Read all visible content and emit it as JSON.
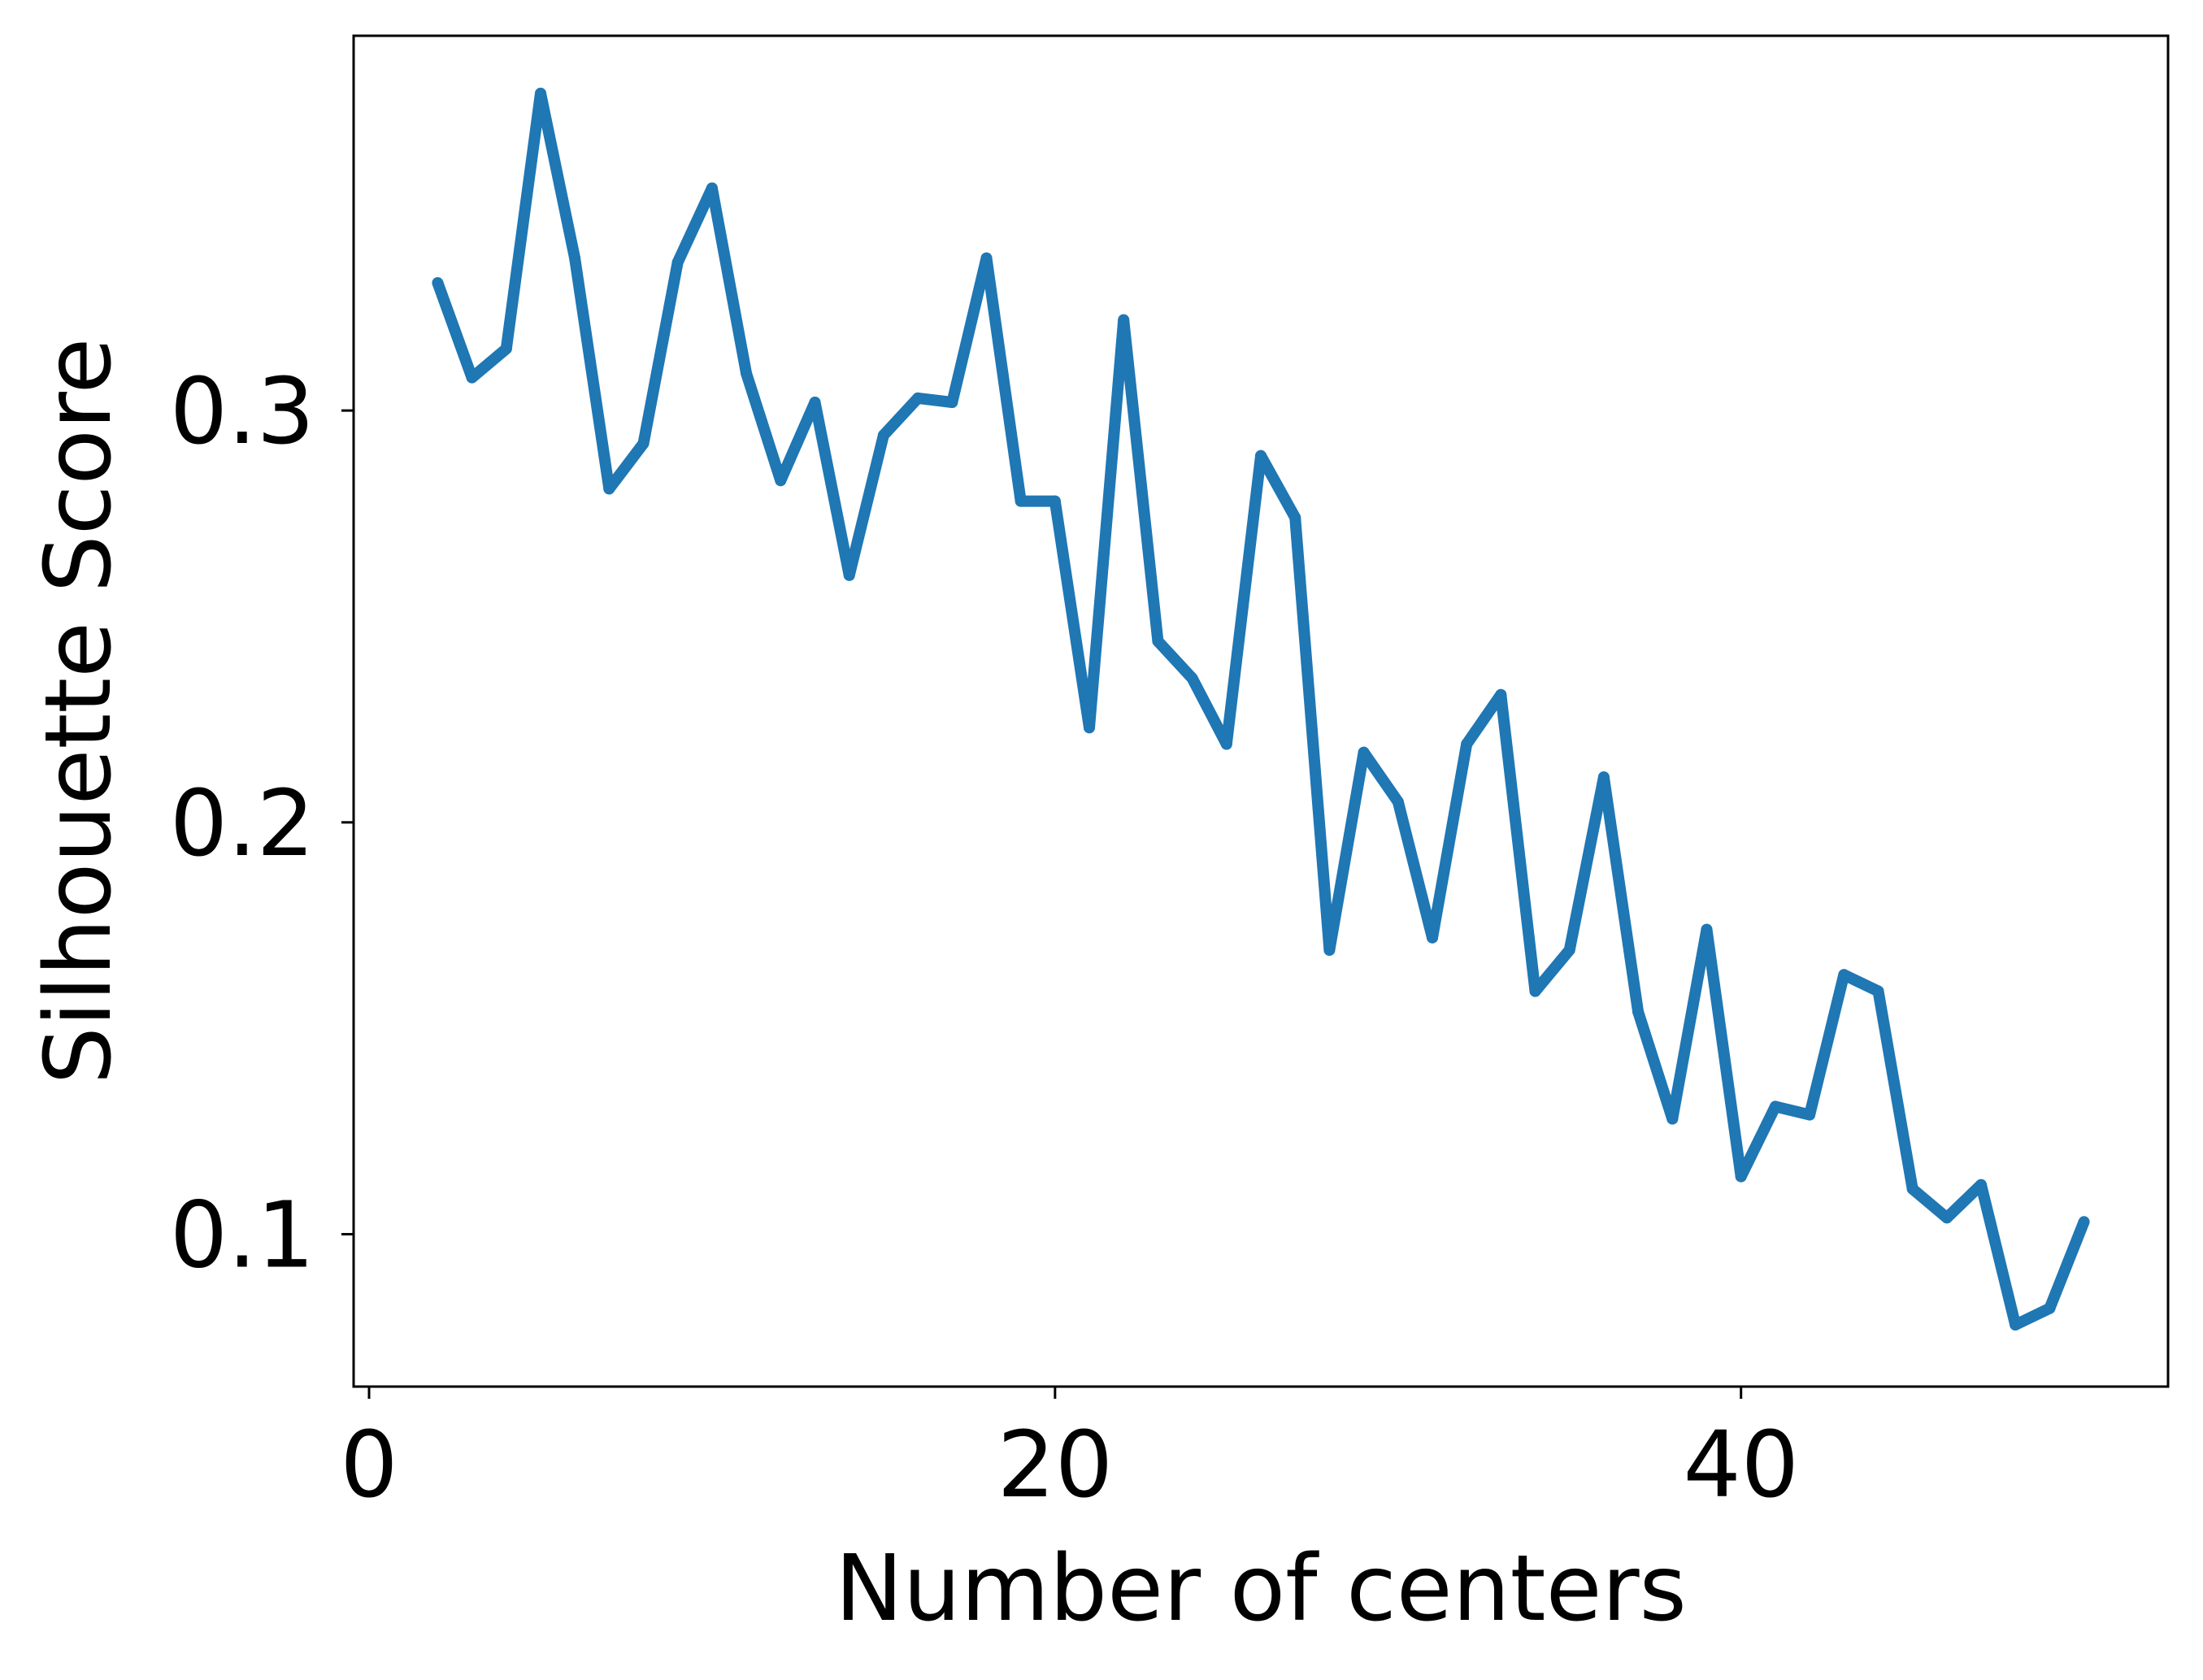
{
  "chart_data": {
    "type": "line",
    "title": "",
    "xlabel": "Number of centers",
    "ylabel": "Silhouette Score",
    "xlim": [
      -0.45,
      52.45
    ],
    "ylim": [
      0.063,
      0.391
    ],
    "xticks": [
      0,
      20,
      40
    ],
    "xtick_labels": [
      "0",
      "20",
      "40"
    ],
    "yticks": [
      0.1,
      0.2,
      0.3
    ],
    "ytick_labels": [
      "0.1",
      "0.2",
      "0.3"
    ],
    "grid": false,
    "legend": "none",
    "series": [
      {
        "color": "#1f77b4",
        "x": [
          2,
          3,
          4,
          5,
          6,
          7,
          8,
          9,
          10,
          11,
          12,
          13,
          14,
          15,
          16,
          17,
          18,
          19,
          20,
          21,
          22,
          23,
          24,
          25,
          26,
          27,
          28,
          29,
          30,
          31,
          32,
          33,
          34,
          35,
          36,
          37,
          38,
          39,
          40,
          41,
          42,
          43,
          44,
          45,
          46,
          47,
          48,
          49,
          50
        ],
        "values": [
          0.331,
          0.308,
          0.315,
          0.377,
          0.337,
          0.281,
          0.292,
          0.336,
          0.354,
          0.309,
          0.283,
          0.302,
          0.26,
          0.294,
          0.303,
          0.302,
          0.337,
          0.278,
          0.278,
          0.223,
          0.322,
          0.244,
          0.235,
          0.219,
          0.289,
          0.274,
          0.169,
          0.217,
          0.205,
          0.172,
          0.219,
          0.231,
          0.159,
          0.169,
          0.211,
          0.154,
          0.128,
          0.174,
          0.114,
          0.131,
          0.129,
          0.163,
          0.159,
          0.111,
          0.104,
          0.112,
          0.078,
          0.082,
          0.103
        ]
      }
    ]
  }
}
